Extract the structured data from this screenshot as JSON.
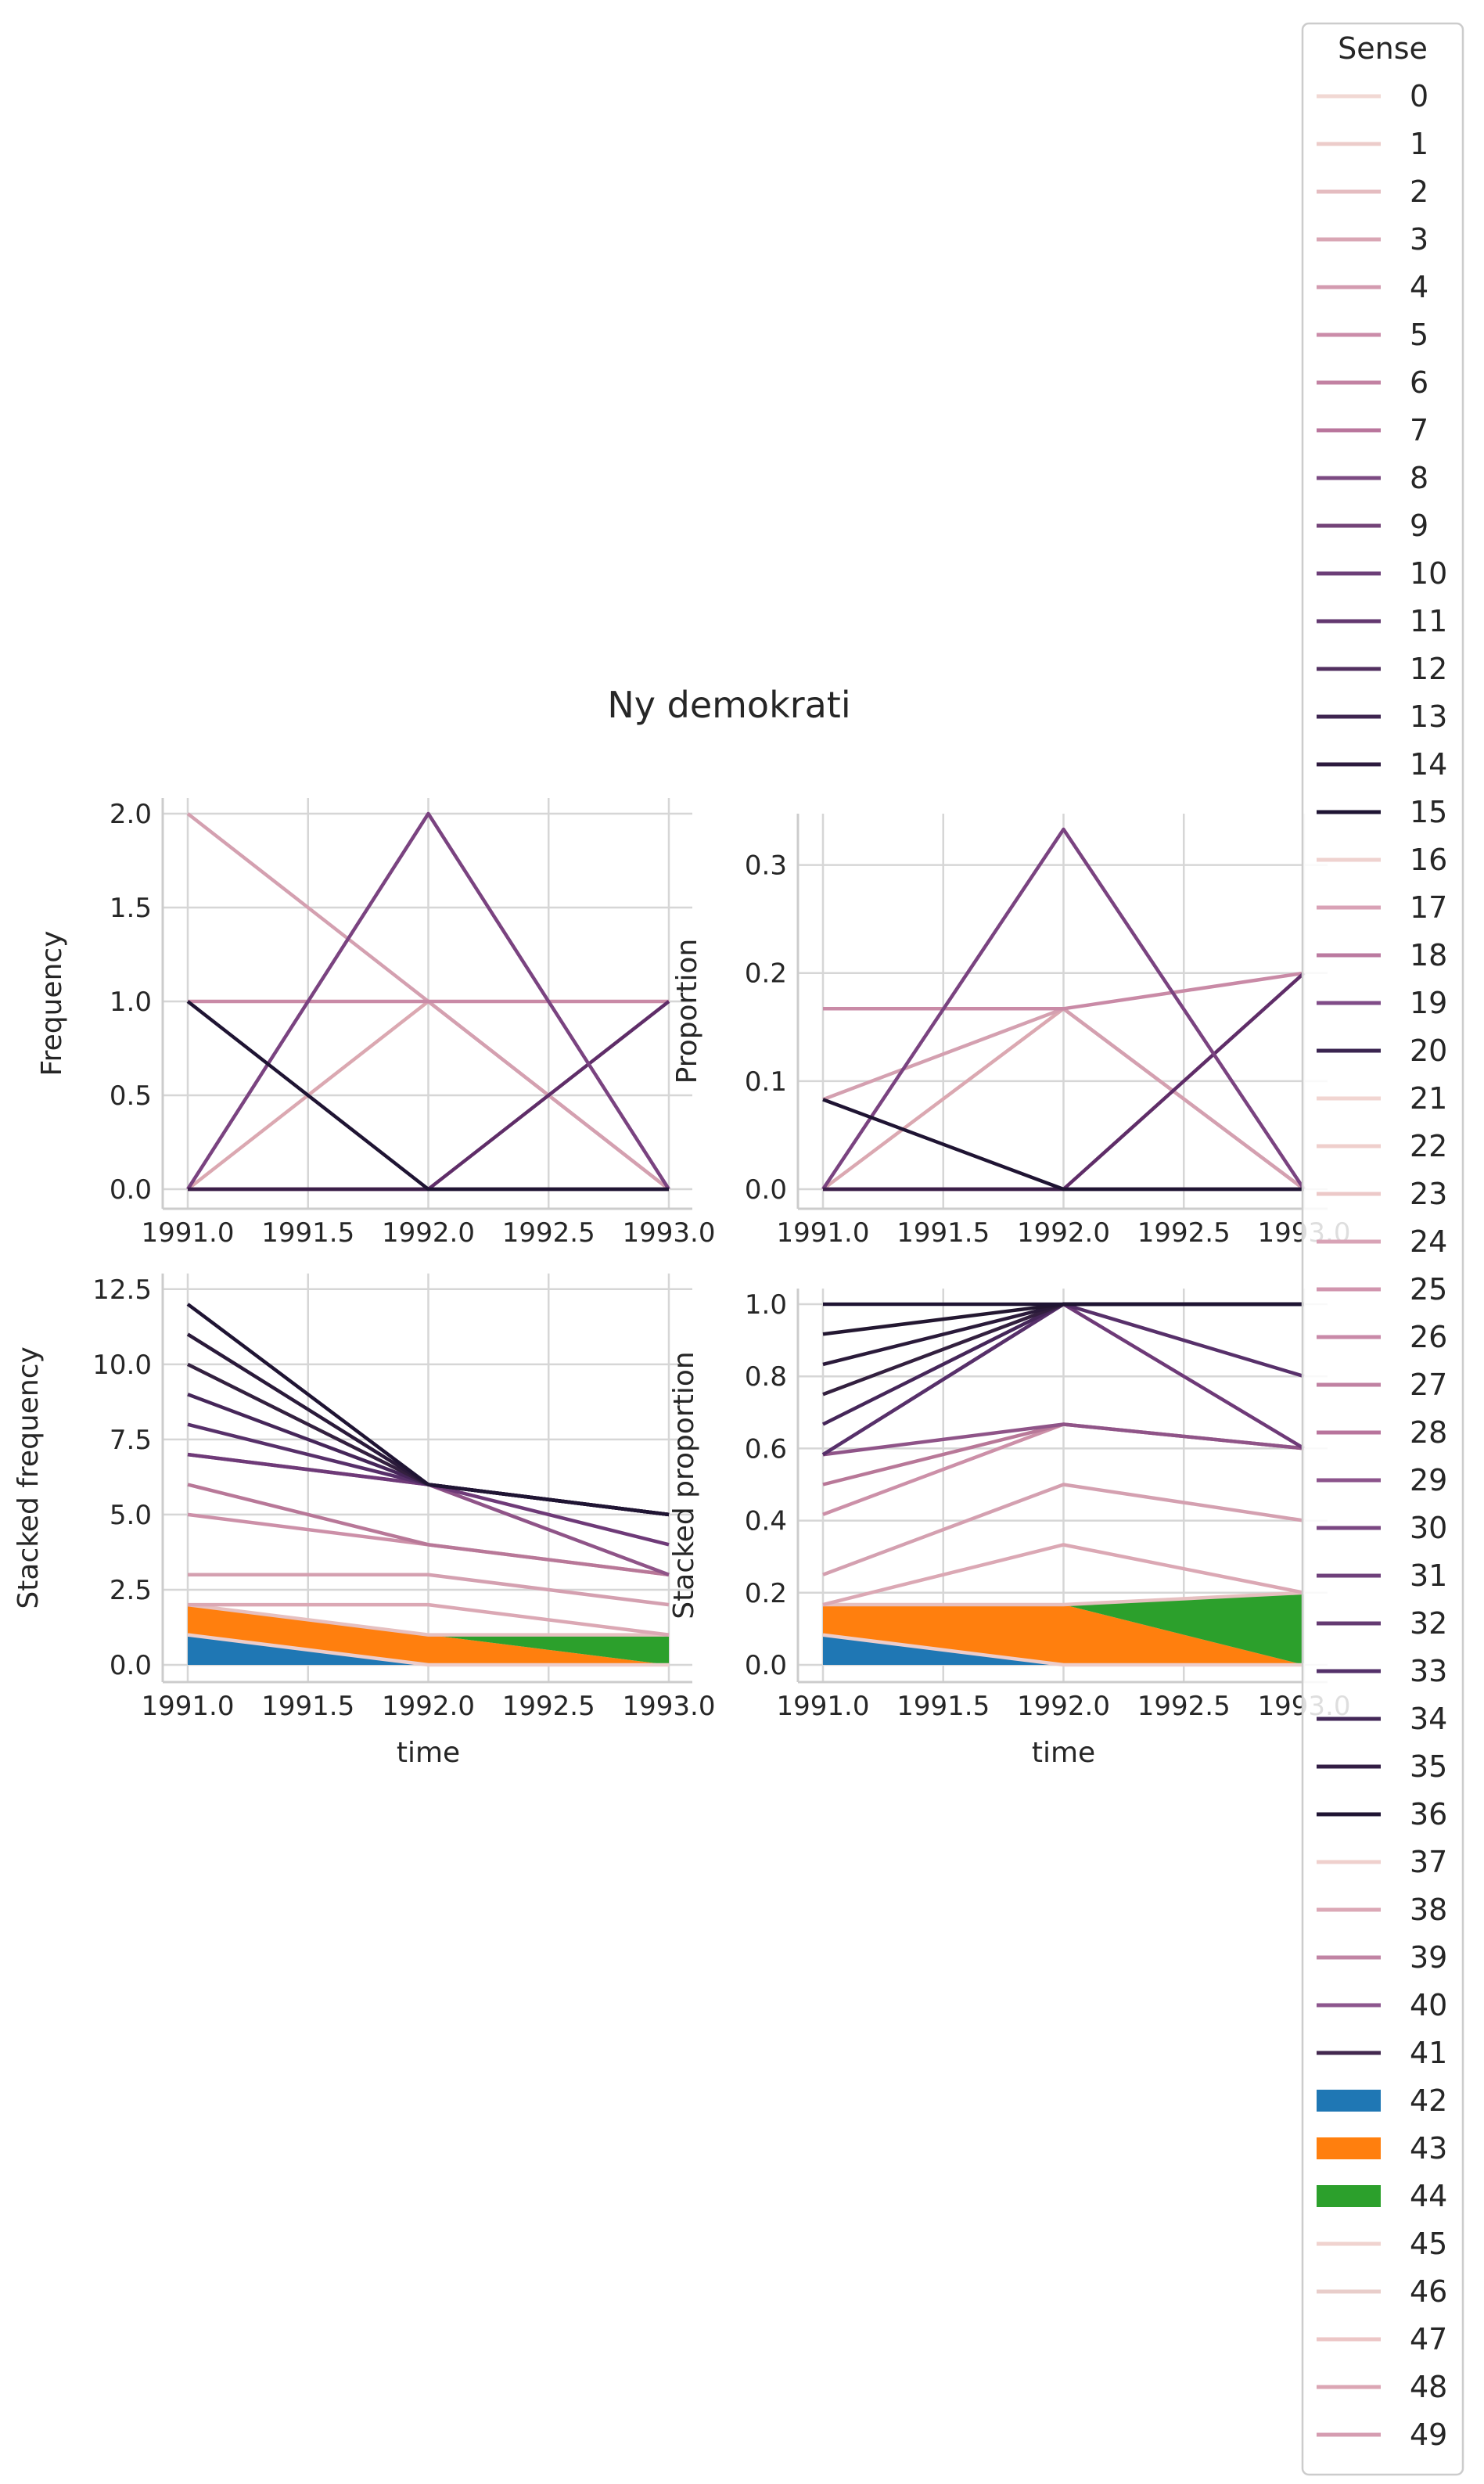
{
  "figure_title": "Ny demokrati",
  "chart_data": [
    {
      "type": "line",
      "panel": "top-left",
      "title": "",
      "xlabel": "",
      "ylabel": "Frequency",
      "xlim": [
        1991.0,
        1993.0
      ],
      "ylim": [
        0.0,
        2.0
      ],
      "xticks": [
        1991.0,
        1991.5,
        1992.0,
        1992.5,
        1993.0
      ],
      "xtick_labels": [
        "1991.0",
        "1991.5",
        "1992.0",
        "1992.5",
        "1993.0"
      ],
      "yticks": [
        0.0,
        0.5,
        1.0,
        1.5,
        2.0
      ],
      "ytick_labels": [
        "0.0",
        "0.5",
        "1.0",
        "1.5",
        "2.0"
      ],
      "grid": true,
      "x": [
        1991,
        1992,
        1993
      ],
      "series": [
        {
          "color": "#e8c5c3",
          "values": [
            0,
            0,
            0
          ]
        },
        {
          "color": "#dba8b1",
          "values": [
            0,
            1,
            0
          ]
        },
        {
          "color": "#d4a0b0",
          "values": [
            2,
            1,
            0
          ]
        },
        {
          "color": "#c98aa6",
          "values": [
            1,
            1,
            1
          ]
        },
        {
          "color": "#5f2d68",
          "values": [
            0,
            0,
            1
          ]
        },
        {
          "color": "#7a4380",
          "values": [
            0,
            2,
            0
          ]
        },
        {
          "color": "#3a1e48",
          "values": [
            0,
            0,
            0
          ]
        },
        {
          "color": "#1f1433",
          "values": [
            1,
            0,
            0
          ]
        }
      ]
    },
    {
      "type": "line",
      "panel": "top-right",
      "title": "",
      "xlabel": "",
      "ylabel": "Proportion",
      "xlim": [
        1991.0,
        1993.0
      ],
      "ylim": [
        0.0,
        0.333
      ],
      "xticks": [
        1991.0,
        1991.5,
        1992.0,
        1992.5,
        1993.0
      ],
      "xtick_labels": [
        "1991.0",
        "1991.5",
        "1992.0",
        "1992.5",
        "1993.0"
      ],
      "yticks": [
        0.0,
        0.1,
        0.2,
        0.3
      ],
      "ytick_labels": [
        "0.0",
        "0.1",
        "0.2",
        "0.3"
      ],
      "grid": true,
      "x": [
        1991,
        1992,
        1993
      ],
      "series": [
        {
          "color": "#e8c5c3",
          "values": [
            0,
            0,
            0
          ]
        },
        {
          "color": "#dba8b1",
          "values": [
            0,
            0.167,
            0
          ]
        },
        {
          "color": "#d4a0b0",
          "values": [
            0.083,
            0.167,
            0
          ]
        },
        {
          "color": "#c98aa6",
          "values": [
            0.167,
            0.167,
            0.2
          ]
        },
        {
          "color": "#5f2d68",
          "values": [
            0,
            0,
            0.2
          ]
        },
        {
          "color": "#7a4380",
          "values": [
            0,
            0.333,
            0
          ]
        },
        {
          "color": "#3a1e48",
          "values": [
            0,
            0,
            0
          ]
        },
        {
          "color": "#1f1433",
          "values": [
            0.083,
            0,
            0
          ]
        }
      ]
    },
    {
      "type": "area",
      "panel": "bottom-left",
      "title": "",
      "xlabel": "time",
      "ylabel": "Stacked frequency",
      "xlim": [
        1991.0,
        1993.0
      ],
      "ylim": [
        0.0,
        12.0
      ],
      "xticks": [
        1991.0,
        1991.5,
        1992.0,
        1992.5,
        1993.0
      ],
      "xtick_labels": [
        "1991.0",
        "1991.5",
        "1992.0",
        "1992.5",
        "1993.0"
      ],
      "yticks": [
        0.0,
        2.5,
        5.0,
        7.5,
        10.0,
        12.5
      ],
      "ytick_labels": [
        "0.0",
        "2.5",
        "5.0",
        "7.5",
        "10.0",
        "12.5"
      ],
      "grid": true,
      "x": [
        1991,
        1992,
        1993
      ],
      "areas": [
        {
          "color": "#1f77b4",
          "lower": [
            0,
            0,
            0
          ],
          "upper": [
            1,
            0,
            0
          ]
        },
        {
          "color": "#ff7f0e",
          "lower": [
            1,
            0,
            0
          ],
          "upper": [
            2,
            1,
            0
          ]
        },
        {
          "color": "#2ca02c",
          "lower": [
            0,
            1,
            0
          ],
          "upper": [
            0,
            1,
            1
          ]
        }
      ],
      "series": [
        {
          "color": "#eccdcb",
          "values": [
            1,
            0,
            0
          ]
        },
        {
          "color": "#e6c0c0",
          "values": [
            2,
            1,
            1
          ]
        },
        {
          "color": "#dba8b4",
          "values": [
            2,
            2,
            1
          ]
        },
        {
          "color": "#d4a0b0",
          "values": [
            3,
            3,
            2
          ]
        },
        {
          "color": "#cc90a8",
          "values": [
            5,
            4,
            3
          ]
        },
        {
          "color": "#b87898",
          "values": [
            6,
            4,
            3
          ]
        },
        {
          "color": "#8f5488",
          "values": [
            7,
            6,
            3
          ]
        },
        {
          "color": "#6e3a78",
          "values": [
            7,
            6,
            4
          ]
        },
        {
          "color": "#57306a",
          "values": [
            8,
            6,
            5
          ]
        },
        {
          "color": "#452659",
          "values": [
            9,
            6,
            5
          ]
        },
        {
          "color": "#33203f",
          "values": [
            10,
            6,
            5
          ]
        },
        {
          "color": "#2a1a3a",
          "values": [
            11,
            6,
            5
          ]
        },
        {
          "color": "#1f1433",
          "values": [
            12,
            6,
            5
          ]
        }
      ]
    },
    {
      "type": "area",
      "panel": "bottom-right",
      "title": "",
      "xlabel": "time",
      "ylabel": "Stacked proportion",
      "xlim": [
        1991.0,
        1993.0
      ],
      "ylim": [
        0.0,
        1.0
      ],
      "xticks": [
        1991.0,
        1991.5,
        1992.0,
        1992.5,
        1993.0
      ],
      "xtick_labels": [
        "1991.0",
        "1991.5",
        "1992.0",
        "1992.5",
        "1993.0"
      ],
      "yticks": [
        0.0,
        0.2,
        0.4,
        0.6,
        0.8,
        1.0
      ],
      "ytick_labels": [
        "0.0",
        "0.2",
        "0.4",
        "0.6",
        "0.8",
        "1.0"
      ],
      "grid": true,
      "x": [
        1991,
        1992,
        1993
      ],
      "areas": [
        {
          "color": "#1f77b4",
          "lower": [
            0,
            0,
            0
          ],
          "upper": [
            0.083,
            0,
            0
          ]
        },
        {
          "color": "#ff7f0e",
          "lower": [
            0.083,
            0,
            0
          ],
          "upper": [
            0.167,
            0.167,
            0
          ]
        },
        {
          "color": "#2ca02c",
          "lower": [
            0,
            0.167,
            0
          ],
          "upper": [
            0,
            0.167,
            0.2
          ]
        }
      ],
      "series": [
        {
          "color": "#eccdcb",
          "values": [
            0.083,
            0,
            0
          ]
        },
        {
          "color": "#e6c0c0",
          "values": [
            0.167,
            0.167,
            0.2
          ]
        },
        {
          "color": "#dba8b4",
          "values": [
            0.167,
            0.333,
            0.2
          ]
        },
        {
          "color": "#d4a0b0",
          "values": [
            0.25,
            0.5,
            0.4
          ]
        },
        {
          "color": "#cc90a8",
          "values": [
            0.417,
            0.667,
            0.6
          ]
        },
        {
          "color": "#b87898",
          "values": [
            0.5,
            0.667,
            0.6
          ]
        },
        {
          "color": "#8f5488",
          "values": [
            0.583,
            0.667,
            0.6
          ]
        },
        {
          "color": "#6e3a78",
          "values": [
            0.583,
            1.0,
            0.6
          ]
        },
        {
          "color": "#57306a",
          "values": [
            0.583,
            1.0,
            0.8
          ]
        },
        {
          "color": "#452659",
          "values": [
            0.667,
            1.0,
            1.0
          ]
        },
        {
          "color": "#33203f",
          "values": [
            0.75,
            1.0,
            1.0
          ]
        },
        {
          "color": "#2a1a3a",
          "values": [
            0.833,
            1.0,
            1.0
          ]
        },
        {
          "color": "#231731",
          "values": [
            0.917,
            1.0,
            1.0
          ]
        },
        {
          "color": "#1f1433",
          "values": [
            1.0,
            1.0,
            1.0
          ]
        }
      ]
    }
  ],
  "legend": {
    "title": "Sense",
    "placement": "right",
    "entries": [
      {
        "label": "0",
        "color": "#f1d8d3",
        "kind": "line"
      },
      {
        "label": "1",
        "color": "#ecccca",
        "kind": "line"
      },
      {
        "label": "2",
        "color": "#e4bcc0",
        "kind": "line"
      },
      {
        "label": "3",
        "color": "#d9a6b4",
        "kind": "line"
      },
      {
        "label": "4",
        "color": "#d39bb0",
        "kind": "line"
      },
      {
        "label": "5",
        "color": "#cb8ca9",
        "kind": "line"
      },
      {
        "label": "6",
        "color": "#c281a2",
        "kind": "line"
      },
      {
        "label": "7",
        "color": "#b9759c",
        "kind": "line"
      },
      {
        "label": "8",
        "color": "#7b4a82",
        "kind": "line"
      },
      {
        "label": "9",
        "color": "#734378",
        "kind": "line"
      },
      {
        "label": "10",
        "color": "#6c3e78",
        "kind": "line"
      },
      {
        "label": "11",
        "color": "#633870",
        "kind": "line"
      },
      {
        "label": "12",
        "color": "#523060",
        "kind": "line"
      },
      {
        "label": "13",
        "color": "#3e2450",
        "kind": "line"
      },
      {
        "label": "14",
        "color": "#2c1a3e",
        "kind": "line"
      },
      {
        "label": "15",
        "color": "#1f1433",
        "kind": "line"
      },
      {
        "label": "16",
        "color": "#efd2cf",
        "kind": "line"
      },
      {
        "label": "17",
        "color": "#d9a2b6",
        "kind": "line"
      },
      {
        "label": "18",
        "color": "#bb7aa0",
        "kind": "line"
      },
      {
        "label": "19",
        "color": "#804c88",
        "kind": "line"
      },
      {
        "label": "20",
        "color": "#3a2450",
        "kind": "line"
      },
      {
        "label": "21",
        "color": "#f1d5d1",
        "kind": "line"
      },
      {
        "label": "22",
        "color": "#efcfcc",
        "kind": "line"
      },
      {
        "label": "23",
        "color": "#ecc9c8",
        "kind": "line"
      },
      {
        "label": "24",
        "color": "#d8a3b6",
        "kind": "line"
      },
      {
        "label": "25",
        "color": "#d195ae",
        "kind": "line"
      },
      {
        "label": "26",
        "color": "#c98aa8",
        "kind": "line"
      },
      {
        "label": "27",
        "color": "#c081a2",
        "kind": "line"
      },
      {
        "label": "28",
        "color": "#b8749c",
        "kind": "line"
      },
      {
        "label": "29",
        "color": "#8c548c",
        "kind": "line"
      },
      {
        "label": "30",
        "color": "#7a4782",
        "kind": "line"
      },
      {
        "label": "31",
        "color": "#6f407b",
        "kind": "line"
      },
      {
        "label": "32",
        "color": "#643a72",
        "kind": "line"
      },
      {
        "label": "33",
        "color": "#54316a",
        "kind": "line"
      },
      {
        "label": "34",
        "color": "#432858",
        "kind": "line"
      },
      {
        "label": "35",
        "color": "#321d44",
        "kind": "line"
      },
      {
        "label": "36",
        "color": "#1f1433",
        "kind": "line"
      },
      {
        "label": "37",
        "color": "#efd0cd",
        "kind": "line"
      },
      {
        "label": "38",
        "color": "#dba8b6",
        "kind": "line"
      },
      {
        "label": "39",
        "color": "#c184a4",
        "kind": "line"
      },
      {
        "label": "40",
        "color": "#8d568e",
        "kind": "line"
      },
      {
        "label": "41",
        "color": "#43284f",
        "kind": "line"
      },
      {
        "label": "42",
        "color": "#1f77b4",
        "kind": "patch"
      },
      {
        "label": "43",
        "color": "#ff7f0e",
        "kind": "patch"
      },
      {
        "label": "44",
        "color": "#2ca02c",
        "kind": "patch"
      },
      {
        "label": "45",
        "color": "#f0d3cf",
        "kind": "line"
      },
      {
        "label": "46",
        "color": "#e8cdca",
        "kind": "line"
      },
      {
        "label": "47",
        "color": "#ecc6c6",
        "kind": "line"
      },
      {
        "label": "48",
        "color": "#dba6b4",
        "kind": "line"
      },
      {
        "label": "49",
        "color": "#d59cb0",
        "kind": "line"
      }
    ]
  }
}
